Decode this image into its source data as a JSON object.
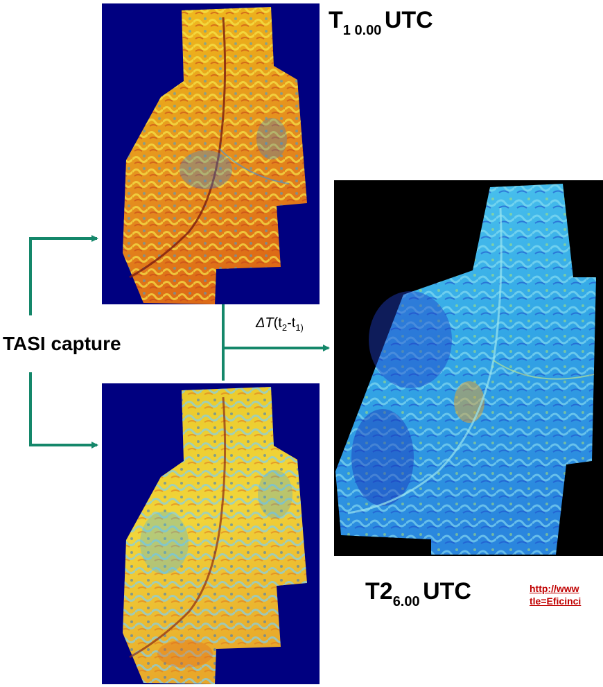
{
  "labels": {
    "t1_main": "T",
    "t1_sub": "1 0.00",
    "t1_suffix": "UTC",
    "t2_main": "T2",
    "t2_sub": "6.00",
    "t2_suffix": "UTC",
    "capture": "TASI capture",
    "delta_symbol": "ΔT",
    "delta_open": "(t",
    "delta_sub2": "2",
    "delta_mid": "-t",
    "delta_sub1": "1)",
    "delta_close": ""
  },
  "links": {
    "line1": "http://www",
    "line2": "tle=Eficinci"
  },
  "colors": {
    "arrow": "#14876a",
    "panel_background": "#000080",
    "difference_background": "#000000",
    "link": "#c00000"
  },
  "panels": {
    "t1_map": "thermal-map-t1",
    "t2_map": "thermal-map-t2",
    "difference_map": "thermal-difference-map"
  }
}
